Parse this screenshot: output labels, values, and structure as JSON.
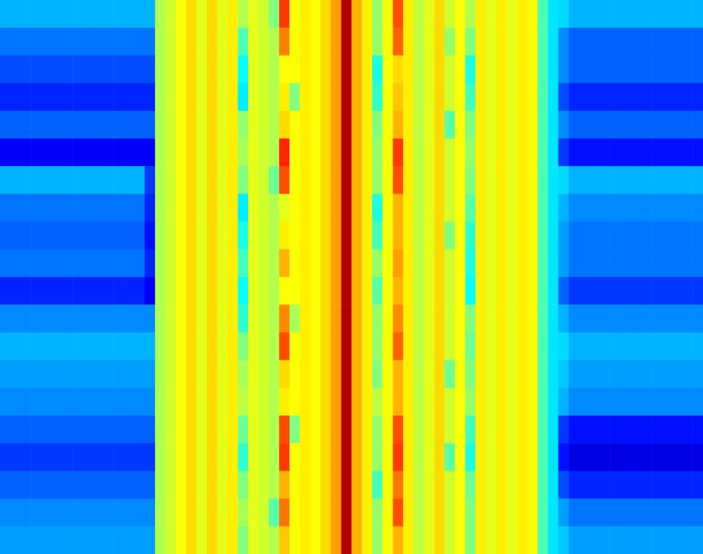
{
  "chart_data": {
    "type": "heatmap",
    "tick_labels": false,
    "color": "jet",
    "zlim": [
      0,
      100
    ],
    "cells": [
      [
        30,
        30,
        30,
        30,
        30,
        30,
        30,
        30,
        30,
        30,
        30,
        30,
        30,
        30,
        30,
        55,
        58,
        62,
        66,
        60,
        66,
        60,
        64,
        55,
        60,
        58,
        50,
        82,
        62,
        64,
        62,
        66,
        72,
        95,
        70,
        64,
        52,
        62,
        80,
        64,
        56,
        60,
        66,
        58,
        62,
        55,
        64,
        60,
        64,
        60,
        64,
        62,
        45,
        35,
        34,
        30,
        30,
        30,
        30,
        30,
        30,
        30,
        30,
        30,
        30,
        30,
        30,
        30
      ],
      [
        24,
        24,
        24,
        24,
        24,
        24,
        24,
        24,
        24,
        24,
        24,
        24,
        24,
        24,
        24,
        55,
        58,
        62,
        66,
        60,
        66,
        60,
        64,
        45,
        60,
        58,
        55,
        75,
        62,
        64,
        62,
        66,
        72,
        95,
        70,
        64,
        52,
        62,
        78,
        64,
        56,
        60,
        66,
        52,
        62,
        50,
        64,
        60,
        64,
        60,
        64,
        62,
        45,
        35,
        26,
        22,
        22,
        22,
        22,
        22,
        22,
        22,
        22,
        22,
        22,
        22,
        22,
        22
      ],
      [
        20,
        20,
        20,
        20,
        20,
        20,
        20,
        20,
        20,
        20,
        20,
        20,
        20,
        20,
        20,
        55,
        58,
        62,
        66,
        60,
        66,
        60,
        64,
        38,
        60,
        58,
        55,
        62,
        62,
        64,
        62,
        66,
        72,
        95,
        70,
        64,
        40,
        62,
        66,
        64,
        56,
        60,
        66,
        58,
        62,
        40,
        64,
        60,
        64,
        60,
        64,
        62,
        45,
        35,
        26,
        22,
        22,
        22,
        22,
        22,
        22,
        22,
        22,
        22,
        22,
        22,
        22,
        22
      ],
      [
        16,
        16,
        16,
        16,
        16,
        16,
        16,
        16,
        16,
        16,
        16,
        16,
        16,
        16,
        16,
        55,
        58,
        62,
        66,
        60,
        66,
        60,
        64,
        36,
        60,
        58,
        55,
        64,
        50,
        64,
        62,
        66,
        72,
        95,
        70,
        64,
        42,
        62,
        68,
        64,
        56,
        60,
        66,
        58,
        62,
        44,
        64,
        60,
        64,
        60,
        64,
        62,
        45,
        35,
        20,
        16,
        16,
        16,
        16,
        16,
        16,
        16,
        16,
        16,
        16,
        16,
        16,
        16
      ],
      [
        22,
        22,
        22,
        22,
        22,
        22,
        22,
        22,
        22,
        22,
        22,
        22,
        22,
        22,
        22,
        55,
        58,
        62,
        66,
        60,
        66,
        60,
        64,
        52,
        60,
        58,
        55,
        66,
        62,
        64,
        62,
        66,
        72,
        95,
        70,
        64,
        50,
        62,
        70,
        64,
        56,
        60,
        66,
        46,
        62,
        50,
        64,
        60,
        64,
        60,
        64,
        62,
        45,
        35,
        26,
        22,
        22,
        22,
        22,
        22,
        22,
        22,
        22,
        22,
        22,
        22,
        22,
        22
      ],
      [
        12,
        12,
        12,
        12,
        12,
        12,
        12,
        12,
        12,
        12,
        12,
        12,
        12,
        12,
        12,
        55,
        58,
        62,
        66,
        60,
        66,
        60,
        64,
        54,
        60,
        58,
        55,
        84,
        62,
        64,
        62,
        66,
        72,
        95,
        70,
        64,
        52,
        62,
        82,
        64,
        56,
        60,
        66,
        58,
        62,
        52,
        64,
        60,
        64,
        60,
        64,
        62,
        45,
        35,
        18,
        14,
        14,
        14,
        14,
        14,
        14,
        14,
        14,
        14,
        14,
        14,
        14,
        14
      ],
      [
        30,
        30,
        30,
        30,
        30,
        30,
        30,
        30,
        30,
        30,
        30,
        30,
        30,
        30,
        18,
        55,
        58,
        62,
        66,
        60,
        66,
        60,
        64,
        50,
        60,
        58,
        48,
        80,
        62,
        64,
        62,
        66,
        72,
        95,
        70,
        64,
        52,
        62,
        80,
        64,
        56,
        60,
        66,
        58,
        62,
        50,
        64,
        60,
        64,
        60,
        64,
        62,
        45,
        35,
        34,
        30,
        30,
        30,
        30,
        30,
        30,
        30,
        30,
        30,
        30,
        30,
        30,
        30
      ],
      [
        24,
        24,
        24,
        24,
        24,
        24,
        24,
        24,
        24,
        24,
        24,
        24,
        24,
        24,
        16,
        55,
        58,
        62,
        66,
        60,
        66,
        60,
        64,
        36,
        60,
        58,
        55,
        60,
        62,
        64,
        62,
        66,
        72,
        95,
        70,
        64,
        40,
        62,
        70,
        64,
        56,
        60,
        66,
        58,
        62,
        46,
        64,
        60,
        64,
        60,
        64,
        62,
        45,
        35,
        30,
        26,
        26,
        26,
        26,
        26,
        26,
        26,
        26,
        26,
        26,
        26,
        26,
        26
      ],
      [
        22,
        22,
        22,
        22,
        22,
        22,
        22,
        22,
        22,
        22,
        22,
        22,
        22,
        22,
        14,
        55,
        58,
        62,
        66,
        60,
        66,
        60,
        64,
        40,
        60,
        58,
        55,
        64,
        62,
        64,
        62,
        66,
        72,
        95,
        70,
        64,
        44,
        62,
        70,
        64,
        56,
        60,
        66,
        50,
        62,
        42,
        64,
        60,
        64,
        60,
        64,
        62,
        45,
        35,
        28,
        24,
        24,
        24,
        24,
        24,
        24,
        24,
        24,
        24,
        24,
        24,
        24,
        24
      ],
      [
        24,
        24,
        24,
        24,
        24,
        24,
        24,
        24,
        24,
        24,
        24,
        24,
        24,
        24,
        16,
        55,
        58,
        62,
        66,
        60,
        66,
        60,
        64,
        44,
        60,
        58,
        55,
        70,
        62,
        64,
        62,
        66,
        72,
        95,
        70,
        64,
        52,
        62,
        72,
        64,
        56,
        60,
        66,
        58,
        62,
        40,
        64,
        60,
        64,
        60,
        64,
        62,
        45,
        35,
        28,
        24,
        24,
        24,
        24,
        24,
        24,
        24,
        24,
        24,
        24,
        24,
        24,
        24
      ],
      [
        16,
        16,
        16,
        16,
        16,
        16,
        16,
        16,
        16,
        16,
        16,
        16,
        16,
        16,
        12,
        55,
        58,
        62,
        66,
        60,
        66,
        60,
        64,
        38,
        60,
        58,
        55,
        62,
        62,
        64,
        62,
        66,
        72,
        95,
        70,
        64,
        46,
        62,
        70,
        64,
        56,
        60,
        66,
        58,
        62,
        38,
        64,
        60,
        64,
        60,
        64,
        62,
        45,
        35,
        22,
        18,
        18,
        18,
        18,
        18,
        18,
        18,
        18,
        18,
        18,
        18,
        18,
        18
      ],
      [
        26,
        26,
        26,
        26,
        26,
        26,
        26,
        26,
        26,
        26,
        26,
        26,
        26,
        26,
        26,
        55,
        58,
        62,
        66,
        60,
        66,
        60,
        64,
        42,
        60,
        58,
        55,
        74,
        54,
        64,
        62,
        66,
        72,
        95,
        70,
        64,
        52,
        62,
        74,
        64,
        56,
        60,
        66,
        58,
        62,
        50,
        64,
        60,
        64,
        60,
        64,
        62,
        45,
        35,
        30,
        26,
        26,
        26,
        26,
        26,
        26,
        26,
        26,
        26,
        26,
        26,
        26,
        26
      ],
      [
        30,
        30,
        30,
        30,
        30,
        30,
        30,
        30,
        30,
        30,
        30,
        30,
        30,
        30,
        30,
        55,
        58,
        62,
        66,
        60,
        66,
        60,
        64,
        50,
        60,
        58,
        55,
        80,
        62,
        64,
        62,
        66,
        72,
        95,
        70,
        64,
        52,
        62,
        78,
        64,
        56,
        60,
        66,
        58,
        62,
        48,
        64,
        60,
        64,
        60,
        64,
        62,
        45,
        35,
        34,
        30,
        30,
        30,
        30,
        30,
        30,
        30,
        30,
        30,
        30,
        30,
        30,
        30
      ],
      [
        28,
        28,
        28,
        28,
        28,
        28,
        28,
        28,
        28,
        28,
        28,
        28,
        28,
        28,
        28,
        55,
        58,
        62,
        66,
        60,
        66,
        60,
        64,
        54,
        60,
        58,
        55,
        66,
        62,
        64,
        62,
        66,
        72,
        95,
        70,
        64,
        50,
        62,
        70,
        64,
        56,
        60,
        66,
        48,
        62,
        50,
        64,
        60,
        64,
        60,
        64,
        62,
        45,
        35,
        32,
        28,
        28,
        28,
        28,
        28,
        28,
        28,
        28,
        28,
        28,
        28,
        28,
        28
      ],
      [
        26,
        26,
        26,
        26,
        26,
        26,
        26,
        26,
        26,
        26,
        26,
        26,
        26,
        26,
        26,
        55,
        58,
        62,
        66,
        60,
        66,
        60,
        64,
        56,
        60,
        58,
        55,
        64,
        62,
        64,
        62,
        66,
        72,
        95,
        70,
        64,
        56,
        62,
        70,
        64,
        56,
        60,
        66,
        58,
        62,
        52,
        64,
        60,
        64,
        60,
        64,
        62,
        45,
        35,
        30,
        26,
        26,
        26,
        26,
        26,
        26,
        26,
        26,
        26,
        26,
        26,
        26,
        26
      ],
      [
        22,
        22,
        22,
        22,
        22,
        22,
        22,
        22,
        22,
        22,
        22,
        22,
        22,
        22,
        22,
        55,
        58,
        62,
        66,
        60,
        66,
        60,
        64,
        48,
        60,
        58,
        55,
        80,
        50,
        64,
        62,
        66,
        72,
        95,
        70,
        64,
        52,
        62,
        80,
        64,
        56,
        60,
        66,
        58,
        62,
        44,
        64,
        60,
        64,
        60,
        64,
        62,
        45,
        35,
        18,
        14,
        14,
        14,
        14,
        14,
        14,
        14,
        14,
        14,
        14,
        14,
        14,
        14
      ],
      [
        18,
        18,
        18,
        18,
        18,
        18,
        18,
        18,
        18,
        18,
        18,
        18,
        18,
        18,
        18,
        55,
        58,
        62,
        66,
        60,
        66,
        60,
        64,
        42,
        60,
        58,
        55,
        82,
        62,
        64,
        62,
        66,
        72,
        95,
        70,
        64,
        52,
        62,
        82,
        64,
        56,
        60,
        66,
        46,
        62,
        40,
        64,
        60,
        64,
        60,
        64,
        62,
        45,
        35,
        14,
        10,
        10,
        10,
        10,
        10,
        10,
        10,
        10,
        10,
        10,
        10,
        10,
        10
      ],
      [
        22,
        22,
        22,
        22,
        22,
        22,
        22,
        22,
        22,
        22,
        22,
        22,
        22,
        22,
        22,
        55,
        58,
        62,
        66,
        60,
        66,
        60,
        64,
        50,
        60,
        58,
        55,
        70,
        62,
        64,
        62,
        66,
        72,
        95,
        70,
        64,
        44,
        62,
        76,
        64,
        56,
        60,
        66,
        58,
        62,
        48,
        64,
        60,
        64,
        60,
        64,
        62,
        45,
        35,
        20,
        16,
        16,
        16,
        16,
        16,
        16,
        16,
        16,
        16,
        16,
        16,
        16,
        16
      ],
      [
        26,
        26,
        26,
        26,
        26,
        26,
        26,
        26,
        26,
        26,
        26,
        26,
        26,
        26,
        26,
        55,
        58,
        62,
        66,
        60,
        66,
        60,
        64,
        54,
        60,
        58,
        46,
        76,
        62,
        64,
        62,
        66,
        72,
        95,
        70,
        64,
        52,
        62,
        80,
        64,
        56,
        60,
        66,
        58,
        62,
        50,
        64,
        60,
        64,
        60,
        64,
        62,
        45,
        35,
        28,
        24,
        24,
        24,
        24,
        24,
        24,
        24,
        24,
        24,
        24,
        24,
        24,
        24
      ],
      [
        28,
        28,
        28,
        28,
        28,
        28,
        28,
        28,
        28,
        28,
        28,
        28,
        28,
        28,
        28,
        55,
        58,
        62,
        66,
        60,
        66,
        60,
        64,
        50,
        60,
        58,
        55,
        68,
        62,
        64,
        62,
        66,
        72,
        95,
        70,
        64,
        52,
        62,
        70,
        64,
        56,
        60,
        66,
        58,
        62,
        50,
        64,
        60,
        64,
        60,
        64,
        62,
        45,
        35,
        32,
        28,
        28,
        28,
        28,
        28,
        28,
        28,
        28,
        28,
        28,
        28,
        28,
        28
      ]
    ]
  }
}
